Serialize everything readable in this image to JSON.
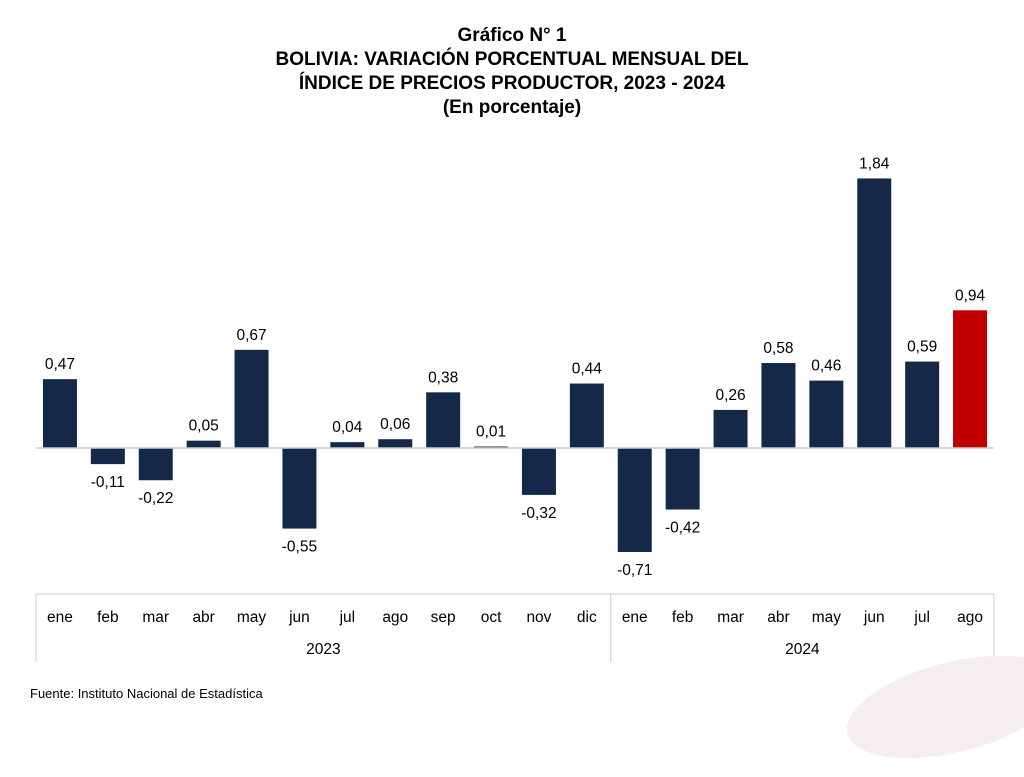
{
  "titles": {
    "line1": "Gráfico N° 1",
    "line2": "BOLIVIA: VARIACIÓN PORCENTUAL MENSUAL DEL",
    "line3": "ÍNDICE DE PRECIOS PRODUCTOR, 2023 - 2024",
    "line4": "(En porcentaje)"
  },
  "source": "Fuente: Instituto Nacional de Estadística",
  "colors": {
    "bar": "#15284a",
    "highlight": "#c00000",
    "axis": "#cccccc"
  },
  "chart_data": {
    "type": "bar",
    "categories": [
      "ene",
      "feb",
      "mar",
      "abr",
      "may",
      "jun",
      "jul",
      "ago",
      "sep",
      "oct",
      "nov",
      "dic",
      "ene",
      "feb",
      "mar",
      "abr",
      "may",
      "jun",
      "jul",
      "ago"
    ],
    "groups": [
      {
        "label": "2023",
        "count": 12
      },
      {
        "label": "2024",
        "count": 8
      }
    ],
    "values": [
      0.47,
      -0.11,
      -0.22,
      0.05,
      0.67,
      -0.55,
      0.04,
      0.06,
      0.38,
      0.01,
      -0.32,
      0.44,
      -0.71,
      -0.42,
      0.26,
      0.58,
      0.46,
      1.84,
      0.59,
      0.94
    ],
    "labels": [
      "0,47",
      "-0,11",
      "-0,22",
      "0,05",
      "0,67",
      "-0,55",
      "0,04",
      "0,06",
      "0,38",
      "0,01",
      "-0,32",
      "0,44",
      "-0,71",
      "-0,42",
      "0,26",
      "0,58",
      "0,46",
      "1,84",
      "0,59",
      "0,94"
    ],
    "highlight_index": 19,
    "grid": false,
    "legend": "none"
  }
}
